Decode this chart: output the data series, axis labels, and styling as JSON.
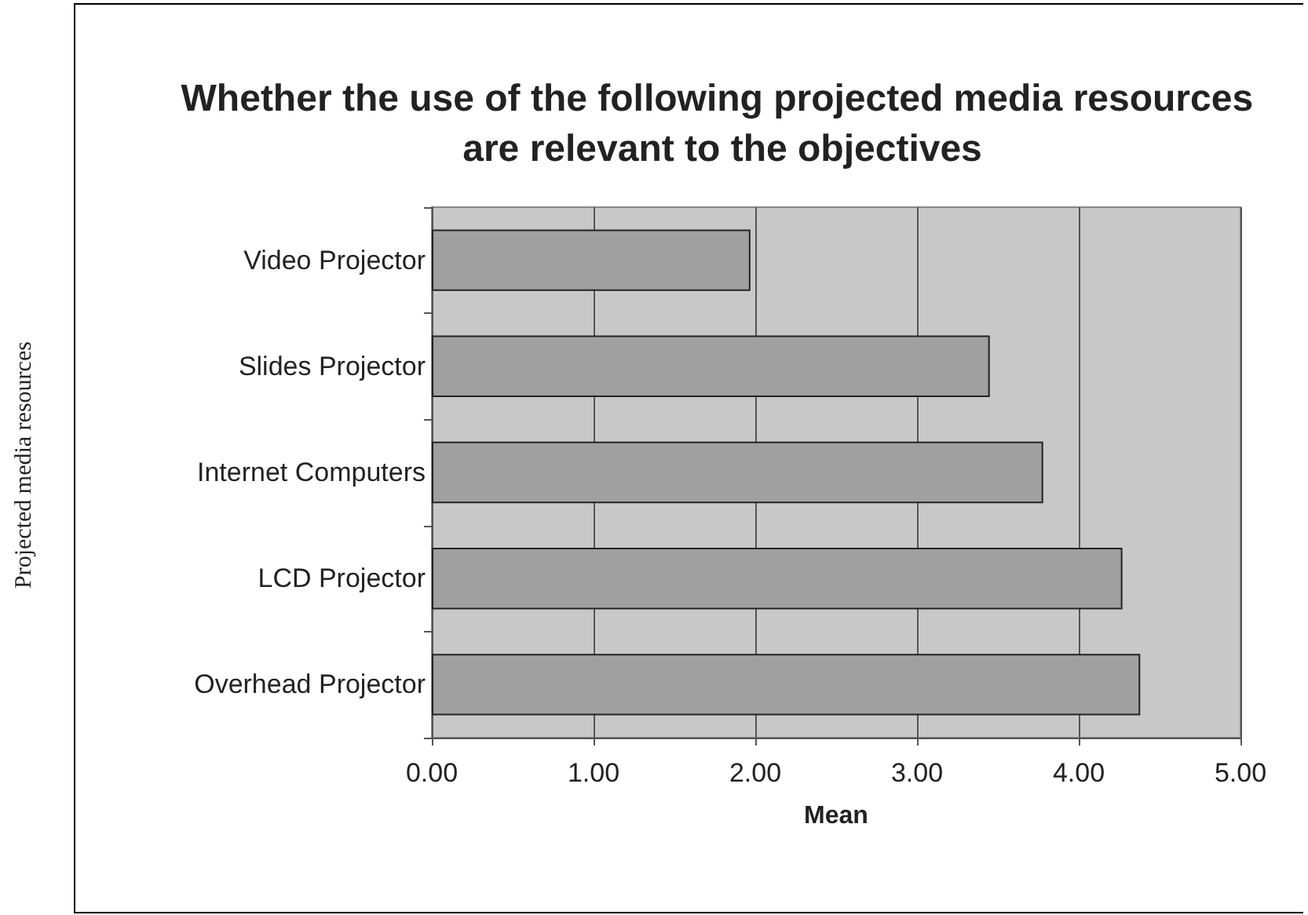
{
  "chart_data": {
    "type": "bar",
    "orientation": "horizontal",
    "title": "Whether the use of the following projected media resources are relevant to the objectives",
    "xlabel": "Mean",
    "annotations": [
      "Projected media resources"
    ],
    "categories": [
      "Video Projector",
      "Slides Projector",
      "Internet Computers",
      "LCD Projector",
      "Overhead Projector"
    ],
    "values": [
      1.97,
      3.45,
      3.78,
      4.27,
      4.38
    ],
    "color": "#a0a0a0",
    "xlim": [
      0,
      5
    ],
    "xticks": [
      {
        "value": 0,
        "label": "0.00"
      },
      {
        "value": 1,
        "label": "1.00"
      },
      {
        "value": 2,
        "label": "2.00"
      },
      {
        "value": 3,
        "label": "3.00"
      },
      {
        "value": 4,
        "label": "4.00"
      },
      {
        "value": 5,
        "label": "5.00"
      }
    ],
    "grid": "x"
  }
}
